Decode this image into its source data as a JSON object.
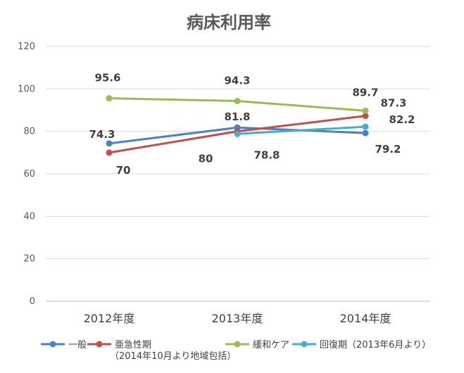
{
  "chart_data": {
    "type": "line",
    "title": "病床利用率",
    "xlabel": "",
    "ylabel": "",
    "categories": [
      "2012年度",
      "2013年度",
      "2014年度"
    ],
    "ylim": [
      0,
      120
    ],
    "yticks": [
      0,
      20,
      40,
      60,
      80,
      100,
      120
    ],
    "grid": true,
    "legend_position": "bottom",
    "series": [
      {
        "name": "一般",
        "color": "#4F81BD",
        "values": [
          74.3,
          81.8,
          79.2
        ]
      },
      {
        "name": "亜急性期",
        "name_note": "（2014年10月より地域包括）",
        "color": "#C0504D",
        "values": [
          70,
          80,
          87.3
        ]
      },
      {
        "name": "緩和ケア",
        "color": "#9BBB59",
        "values": [
          95.6,
          94.3,
          89.7
        ]
      },
      {
        "name": "回復期（2013年6月より）",
        "color": "#4BACC6",
        "values": [
          null,
          78.8,
          82.2
        ]
      }
    ]
  }
}
